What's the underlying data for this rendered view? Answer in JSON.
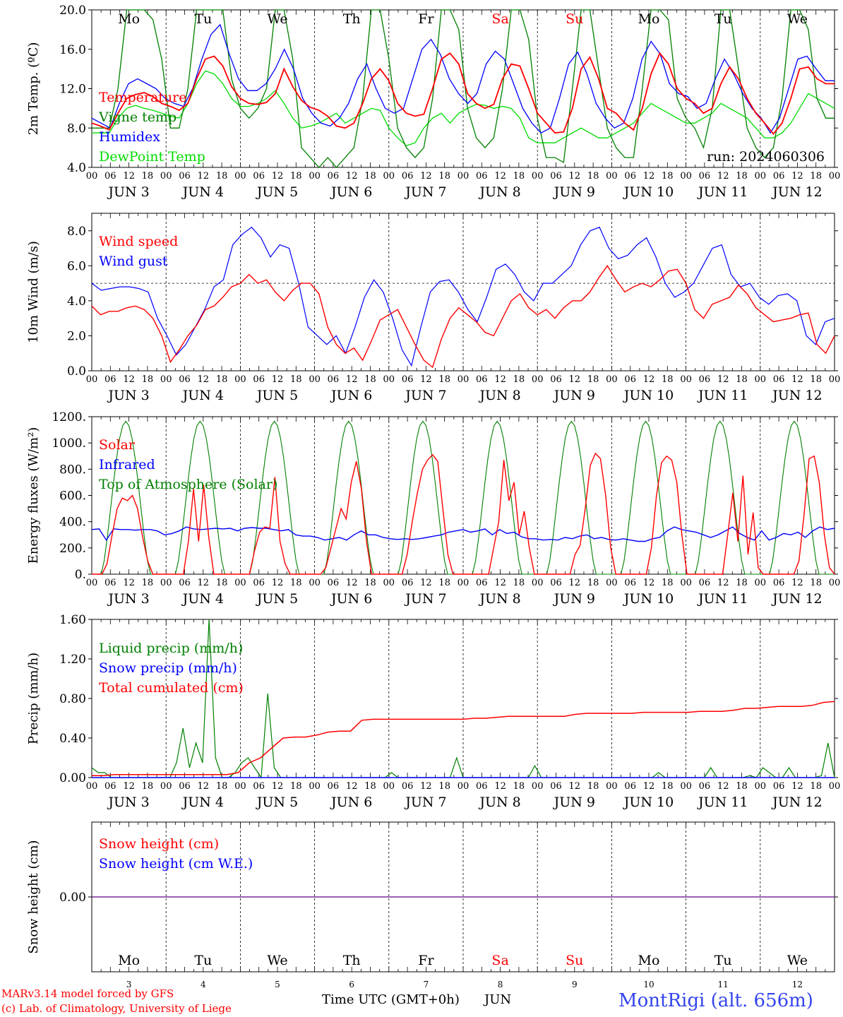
{
  "run_label": "run: 2024060306",
  "colors": {
    "temperature": "#ff0000",
    "vigne": "#008000",
    "humidex": "#0000ff",
    "dewpoint": "#00dd00",
    "wind": "#ff0000",
    "gust": "#0000ff",
    "solar": "#ff0000",
    "infrared": "#0000ff",
    "toa": "#008000",
    "liquid": "#008000",
    "snow": "#0000ff",
    "cumul": "#ff0000",
    "snowh": "#ff0000",
    "snowwe": "#0000ff",
    "weekend": "#ff0000",
    "footer_blue": "#3344ee",
    "footer_red": "#ff0000"
  },
  "x_ticks": [
    "00",
    "06",
    "12",
    "18"
  ],
  "x_end_tick": "00",
  "date_labels": [
    "JUN  3",
    "JUN  4",
    "JUN  5",
    "JUN  6",
    "JUN  7",
    "JUN  8",
    "JUN  9",
    "JUN 10",
    "JUN 11",
    "JUN 12"
  ],
  "weekdays": [
    "Mo",
    "Tu",
    "We",
    "Th",
    "Fr",
    "Sa",
    "Su",
    "Mo",
    "Tu",
    "We"
  ],
  "weekend_flags": [
    false,
    false,
    false,
    false,
    false,
    true,
    true,
    false,
    false,
    false
  ],
  "day_numbers": [
    "3",
    "4",
    "5",
    "6",
    "7",
    "8",
    "9",
    "10",
    "11",
    "12"
  ],
  "footer": {
    "line1": "MARv3.14 model forced by GFS",
    "line2": "(c) Lab. of Climatology, University of Liege",
    "xlabel": "Time UTC (GMT+0h)",
    "month": "JUN",
    "station": "MontRigi (alt. 656m)"
  },
  "chart_data": [
    {
      "type": "line",
      "ylabel": "2m Temp. (ºC)",
      "ylim": [
        4,
        20
      ],
      "yticks": [
        "4.0",
        "8.0",
        "12.0",
        "16.0",
        "20.0"
      ],
      "legend_position": "top-left",
      "series": [
        {
          "name": "Temperature",
          "values": [
            8.5,
            8.2,
            7.8,
            9.5,
            11,
            11.4,
            11.6,
            11.2,
            10.5,
            10.2,
            9.8,
            10.5,
            13,
            15,
            15.3,
            14.3,
            12.2,
            11,
            10.5,
            10.4,
            10.6,
            11.5,
            14,
            12.2,
            10.8,
            10.1,
            9.8,
            9.2,
            8.2,
            8,
            8.5,
            10.5,
            13,
            14,
            12.8,
            10.5,
            9.5,
            9.2,
            9.4,
            12,
            15,
            15.6,
            14.5,
            11.5,
            10.5,
            10,
            10.4,
            13,
            14.5,
            14.3,
            12,
            9.5,
            8.5,
            7.5,
            7.6,
            10,
            14,
            15.2,
            13,
            10,
            9.5,
            8.5,
            7.8,
            10,
            13.5,
            15.6,
            14.5,
            12,
            11,
            10.5,
            9.5,
            10,
            12.5,
            14.2,
            13,
            11,
            9.5,
            8.5,
            7.4,
            8.5,
            11,
            14,
            14.2,
            13,
            12.5,
            12.5
          ]
        },
        {
          "name": "Vigne temp",
          "values": [
            8,
            8,
            8,
            12,
            20,
            20,
            20,
            19,
            15,
            8,
            8,
            12,
            20,
            20,
            20,
            20,
            13,
            10,
            9,
            10,
            12,
            20,
            20,
            15,
            6,
            5,
            4,
            5,
            4,
            5,
            6,
            11,
            20,
            20,
            15,
            8,
            6,
            5,
            6,
            11,
            20,
            20,
            18,
            10,
            7,
            6,
            7,
            12,
            20,
            20,
            17,
            9,
            5,
            5,
            4.5,
            12,
            20,
            20,
            14,
            8,
            6,
            5,
            5,
            12,
            20,
            20,
            19,
            11,
            9,
            8,
            6,
            10,
            20,
            20,
            14,
            8,
            6,
            5,
            6,
            11,
            20,
            20,
            18,
            11,
            9,
            9
          ]
        },
        {
          "name": "Humidex",
          "values": [
            9,
            8.5,
            8,
            10.5,
            12.5,
            13,
            12.5,
            12,
            11,
            10.5,
            10.2,
            12,
            15,
            17.5,
            18.5,
            15.5,
            13,
            11.8,
            11.8,
            12.5,
            14,
            16,
            14,
            11,
            9.5,
            8.5,
            8.2,
            9,
            10.5,
            13,
            14.5,
            12,
            10,
            9.5,
            10,
            13,
            16,
            17,
            15.5,
            13,
            11.5,
            10.5,
            11.5,
            14.5,
            15.8,
            15,
            12.5,
            10,
            8.5,
            7.5,
            8,
            11,
            14.5,
            15.7,
            13.5,
            10.5,
            9,
            8,
            8.5,
            11,
            15,
            16.8,
            15.5,
            12.5,
            11.5,
            11.2,
            10,
            10.5,
            13,
            15,
            13.5,
            11.5,
            10,
            9,
            7.5,
            9,
            12,
            15,
            15.3,
            14,
            12.8,
            12.8
          ]
        },
        {
          "name": "DewPoint Temp",
          "values": [
            7.5,
            7.5,
            7.5,
            9,
            10,
            10.3,
            10,
            9.8,
            9.5,
            9.2,
            9,
            10.5,
            12.5,
            13.8,
            13.5,
            12.5,
            11,
            10.2,
            10.2,
            10.5,
            11,
            11.8,
            10.5,
            9,
            8,
            8.2,
            8.5,
            9,
            9.5,
            8.5,
            9,
            9.5,
            10,
            9.8,
            8,
            7,
            6.2,
            6.5,
            8,
            9,
            9.5,
            8.5,
            9.5,
            10,
            10.4,
            10.3,
            10,
            10.2,
            10,
            9,
            7,
            6.5,
            6.5,
            6.5,
            7,
            7.5,
            8,
            7.5,
            7,
            7,
            7.5,
            8,
            8.5,
            9.5,
            10.5,
            10,
            9.5,
            9,
            8.5,
            8.5,
            9,
            9.5,
            10.5,
            10,
            9.5,
            9,
            8,
            7,
            7,
            7.5,
            8.5,
            10,
            11.5,
            11,
            10.5,
            10
          ]
        }
      ]
    },
    {
      "type": "line",
      "ylabel": "10m Wind (m/s)",
      "ylim": [
        0,
        9
      ],
      "yticks": [
        "0.0",
        "2.0",
        "4.0",
        "6.0",
        "8.0"
      ],
      "reference_line": 5.0,
      "legend_position": "top-left",
      "series": [
        {
          "name": "Wind speed",
          "values": [
            3.7,
            3.2,
            3.4,
            3.4,
            3.6,
            3.7,
            3.5,
            3,
            2,
            0.5,
            1.2,
            2,
            2.6,
            3.5,
            3.7,
            4.2,
            4.8,
            5,
            5.5,
            5,
            5.2,
            4.5,
            4,
            4.6,
            5,
            5,
            4.4,
            2.5,
            1.5,
            1,
            1.3,
            0.6,
            1.7,
            2.9,
            3.2,
            3.5,
            2.5,
            1.5,
            0.6,
            0.2,
            1.8,
            3,
            3.6,
            3.2,
            2.8,
            2.2,
            2,
            3,
            4,
            4.4,
            3.6,
            3.2,
            3.5,
            3,
            3.6,
            4,
            4,
            4.5,
            5.3,
            6,
            5.2,
            4.5,
            4.8,
            5,
            4.8,
            5.2,
            5.7,
            5.8,
            5,
            3.5,
            3,
            3.8,
            4,
            4.2,
            4.9,
            4.4,
            3.6,
            3.2,
            2.8,
            2.9,
            3,
            3.2,
            3.3,
            1.5,
            1,
            2
          ]
        },
        {
          "name": "Wind gust",
          "values": [
            5,
            4.6,
            4.7,
            4.8,
            4.8,
            4.7,
            4.5,
            3,
            2,
            0.9,
            1.5,
            2.5,
            3.5,
            4.8,
            5.2,
            7.2,
            7.8,
            8.2,
            7.6,
            6.5,
            7.2,
            7,
            5,
            2.5,
            2,
            1.5,
            2,
            1,
            2.5,
            4.2,
            5.2,
            4.5,
            3,
            1.2,
            0.3,
            2.5,
            4.5,
            5.1,
            5.2,
            4.5,
            3.5,
            2.8,
            4.2,
            5.8,
            6.1,
            5.5,
            4.5,
            4,
            5,
            5,
            5.5,
            6,
            7.2,
            8,
            8.2,
            7,
            6.4,
            6.6,
            7.2,
            7.6,
            6.5,
            5,
            4.2,
            4.5,
            5,
            6,
            7,
            7.2,
            5.5,
            4.8,
            5,
            4.2,
            3.8,
            4.3,
            4.4,
            4,
            2,
            1.5,
            2.8,
            3
          ]
        }
      ]
    },
    {
      "type": "line",
      "ylabel": "Energy fluxes (W/m²)",
      "ylim": [
        0,
        1200
      ],
      "yticks": [
        "0.",
        "200.",
        "400.",
        "600.",
        "800.",
        "1000.",
        "1200."
      ],
      "legend_position": "top-left",
      "series": [
        {
          "name": "Solar",
          "values": [
            0,
            0,
            0,
            80,
            300,
            500,
            580,
            560,
            600,
            500,
            280,
            100,
            0,
            0,
            0,
            0,
            0,
            0,
            0,
            250,
            650,
            250,
            680,
            280,
            0,
            0,
            0,
            0,
            0,
            0,
            0,
            0,
            180,
            320,
            360,
            350,
            740,
            250,
            80,
            0,
            0,
            0,
            0,
            0,
            0,
            0,
            50,
            200,
            350,
            500,
            420,
            700,
            860,
            650,
            250,
            0,
            0,
            0,
            0,
            0,
            0,
            0,
            150,
            400,
            620,
            800,
            870,
            910,
            860,
            500,
            150,
            0,
            0,
            0,
            0,
            0,
            0,
            0,
            0,
            200,
            400,
            870,
            560,
            700,
            300,
            480,
            200,
            0,
            0,
            0,
            0,
            0,
            0,
            0,
            0,
            150,
            220,
            500,
            830,
            920,
            880,
            600,
            200,
            0,
            0,
            0,
            0,
            0,
            0,
            0,
            200,
            600,
            850,
            900,
            870,
            700,
            300,
            0,
            0,
            0,
            0,
            0,
            0,
            0,
            0,
            300,
            620,
            250,
            750,
            150,
            470,
            50,
            0,
            0,
            0,
            0,
            0,
            0,
            0,
            100,
            450,
            880,
            900,
            700,
            300,
            50,
            0
          ]
        },
        {
          "name": "Infrared",
          "values": [
            340,
            345,
            260,
            345,
            340,
            340,
            335,
            340,
            340,
            330,
            300,
            310,
            330,
            360,
            345,
            340,
            345,
            350,
            345,
            350,
            330,
            350,
            355,
            350,
            350,
            340,
            330,
            340,
            300,
            290,
            290,
            280,
            260,
            270,
            280,
            260,
            300,
            330,
            300,
            300,
            280,
            270,
            265,
            270,
            265,
            270,
            280,
            290,
            300,
            320,
            330,
            340,
            320,
            330,
            345,
            300,
            340,
            310,
            320,
            285,
            270,
            270,
            260,
            265,
            260,
            280,
            270,
            290,
            300,
            270,
            280,
            265,
            260,
            270,
            260,
            250,
            250,
            270,
            280,
            330,
            360,
            340,
            330,
            320,
            300,
            280,
            300,
            330,
            360,
            310,
            280,
            260,
            330,
            260,
            280,
            310,
            300,
            320,
            280,
            330,
            360,
            340,
            350
          ]
        },
        {
          "name": "Top of Atmosphere (Solar)",
          "values": "computed"
        }
      ]
    },
    {
      "type": "line",
      "ylabel": "Precip (mm/h)",
      "ylim": [
        0,
        1.6
      ],
      "yticks": [
        "0.00",
        "0.40",
        "0.80",
        "1.20",
        "1.60"
      ],
      "legend_position": "top-left",
      "series": [
        {
          "name": "Liquid precip (mm/h)",
          "values": [
            0.1,
            0.05,
            0.05,
            0,
            0,
            0,
            0,
            0,
            0,
            0,
            0,
            0,
            0,
            0.15,
            0.5,
            0.1,
            0.35,
            0.15,
            1.6,
            0.2,
            0,
            0,
            0.05,
            0.15,
            0.2,
            0.1,
            0,
            0.85,
            0.1,
            0,
            0,
            0,
            0,
            0,
            0,
            0,
            0,
            0,
            0,
            0,
            0,
            0,
            0,
            0,
            0,
            0,
            0.05,
            0,
            0,
            0,
            0,
            0,
            0,
            0,
            0,
            0,
            0.2,
            0,
            0,
            0,
            0,
            0,
            0,
            0,
            0,
            0,
            0,
            0,
            0.12,
            0,
            0,
            0,
            0,
            0,
            0,
            0,
            0,
            0,
            0,
            0,
            0,
            0,
            0,
            0,
            0,
            0,
            0,
            0.05,
            0,
            0,
            0,
            0,
            0,
            0,
            0,
            0.1,
            0,
            0,
            0,
            0,
            0,
            0.02,
            0,
            0.1,
            0.05,
            0,
            0,
            0.1,
            0,
            0,
            0,
            0,
            0.02,
            0.35,
            0
          ]
        },
        {
          "name": "Snow precip (mm/h)",
          "values": [
            0,
            0,
            0,
            0,
            0,
            0,
            0,
            0,
            0,
            0,
            0,
            0,
            0,
            0,
            0,
            0,
            0,
            0,
            0,
            0,
            0,
            0,
            0,
            0
          ]
        },
        {
          "name": "Total cumulated (cm)",
          "values": [
            0.02,
            0.02,
            0.03,
            0.03,
            0.03,
            0.03,
            0.03,
            0.03,
            0.03,
            0.03,
            0.03,
            0.03,
            0.03,
            0.05,
            0.15,
            0.2,
            0.3,
            0.4,
            0.41,
            0.41,
            0.43,
            0.46,
            0.47,
            0.47,
            0.58,
            0.59,
            0.59,
            0.59,
            0.59,
            0.59,
            0.59,
            0.59,
            0.59,
            0.59,
            0.6,
            0.6,
            0.61,
            0.62,
            0.62,
            0.62,
            0.62,
            0.62,
            0.62,
            0.64,
            0.65,
            0.65,
            0.65,
            0.65,
            0.65,
            0.66,
            0.66,
            0.66,
            0.66,
            0.66,
            0.67,
            0.67,
            0.67,
            0.68,
            0.7,
            0.7,
            0.71,
            0.72,
            0.72,
            0.72,
            0.73,
            0.76,
            0.77
          ]
        }
      ]
    },
    {
      "type": "line",
      "ylabel": "Snow height (cm)",
      "yticks": [
        "0.00"
      ],
      "legend_position": "top-left",
      "series": [
        {
          "name": "Snow height (cm)",
          "values": [
            0,
            0
          ]
        },
        {
          "name": "Snow height (cm W.E.)",
          "values": [
            0,
            0
          ]
        }
      ]
    }
  ]
}
